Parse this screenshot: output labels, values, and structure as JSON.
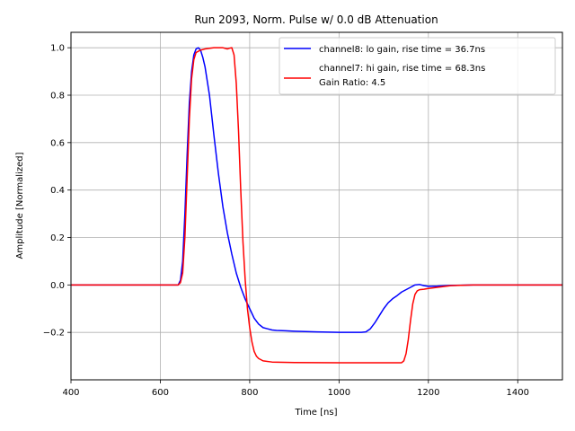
{
  "chart_data": {
    "type": "line",
    "title": "Run 2093, Norm. Pulse w/ 0.0 dB Attenuation",
    "xlabel": "Time [ns]",
    "ylabel": "Amplitude [Normalized]",
    "xlim": [
      400,
      1500
    ],
    "ylim": [
      -0.4,
      1.065
    ],
    "xticks": [
      400,
      600,
      800,
      1000,
      1200,
      1400
    ],
    "yticks": [
      -0.2,
      0.0,
      0.2,
      0.4,
      0.6,
      0.8,
      1.0
    ],
    "grid": true,
    "legend_position": "top-right",
    "legend_extra_text": "Gain Ratio: 4.5",
    "series": [
      {
        "name": "channel8: lo gain, rise time = 36.7ns",
        "color": "#0000ff",
        "x": [
          400,
          500,
          600,
          640,
          645,
          650,
          655,
          660,
          665,
          670,
          675,
          680,
          685,
          690,
          695,
          700,
          710,
          720,
          730,
          740,
          750,
          760,
          770,
          780,
          790,
          800,
          810,
          820,
          830,
          840,
          850,
          860,
          880,
          900,
          950,
          1000,
          1050,
          1060,
          1070,
          1080,
          1090,
          1100,
          1110,
          1120,
          1130,
          1140,
          1150,
          1160,
          1170,
          1180,
          1190,
          1200,
          1220,
          1250,
          1300,
          1400,
          1500
        ],
        "y": [
          0.0,
          0.0,
          0.0,
          0.0,
          0.02,
          0.1,
          0.3,
          0.55,
          0.77,
          0.9,
          0.97,
          0.995,
          1.0,
          0.99,
          0.96,
          0.92,
          0.8,
          0.63,
          0.47,
          0.33,
          0.22,
          0.13,
          0.05,
          -0.01,
          -0.06,
          -0.1,
          -0.14,
          -0.165,
          -0.18,
          -0.185,
          -0.19,
          -0.192,
          -0.193,
          -0.195,
          -0.198,
          -0.2,
          -0.2,
          -0.198,
          -0.185,
          -0.16,
          -0.13,
          -0.1,
          -0.075,
          -0.058,
          -0.045,
          -0.03,
          -0.02,
          -0.01,
          0.0,
          0.002,
          -0.003,
          -0.006,
          -0.005,
          -0.002,
          0.0,
          0.0,
          0.0
        ]
      },
      {
        "name": "channel7: hi gain, rise time = 68.3ns",
        "color": "#ff0000",
        "x": [
          400,
          500,
          600,
          640,
          645,
          650,
          655,
          660,
          665,
          670,
          675,
          680,
          690,
          700,
          720,
          740,
          750,
          755,
          760,
          765,
          770,
          775,
          780,
          785,
          790,
          795,
          800,
          805,
          810,
          815,
          820,
          830,
          850,
          900,
          1000,
          1100,
          1140,
          1145,
          1150,
          1155,
          1160,
          1165,
          1170,
          1175,
          1180,
          1190,
          1200,
          1220,
          1250,
          1300,
          1400,
          1500
        ],
        "y": [
          0.0,
          0.0,
          0.0,
          0.0,
          0.01,
          0.05,
          0.2,
          0.45,
          0.7,
          0.87,
          0.95,
          0.98,
          0.99,
          0.995,
          1.0,
          1.0,
          0.995,
          0.998,
          1.0,
          0.97,
          0.85,
          0.65,
          0.4,
          0.18,
          0.02,
          -0.1,
          -0.18,
          -0.24,
          -0.28,
          -0.3,
          -0.31,
          -0.32,
          -0.325,
          -0.327,
          -0.328,
          -0.328,
          -0.328,
          -0.32,
          -0.29,
          -0.23,
          -0.15,
          -0.08,
          -0.04,
          -0.025,
          -0.02,
          -0.018,
          -0.015,
          -0.01,
          -0.003,
          0.0,
          0.0,
          0.0
        ]
      }
    ]
  }
}
